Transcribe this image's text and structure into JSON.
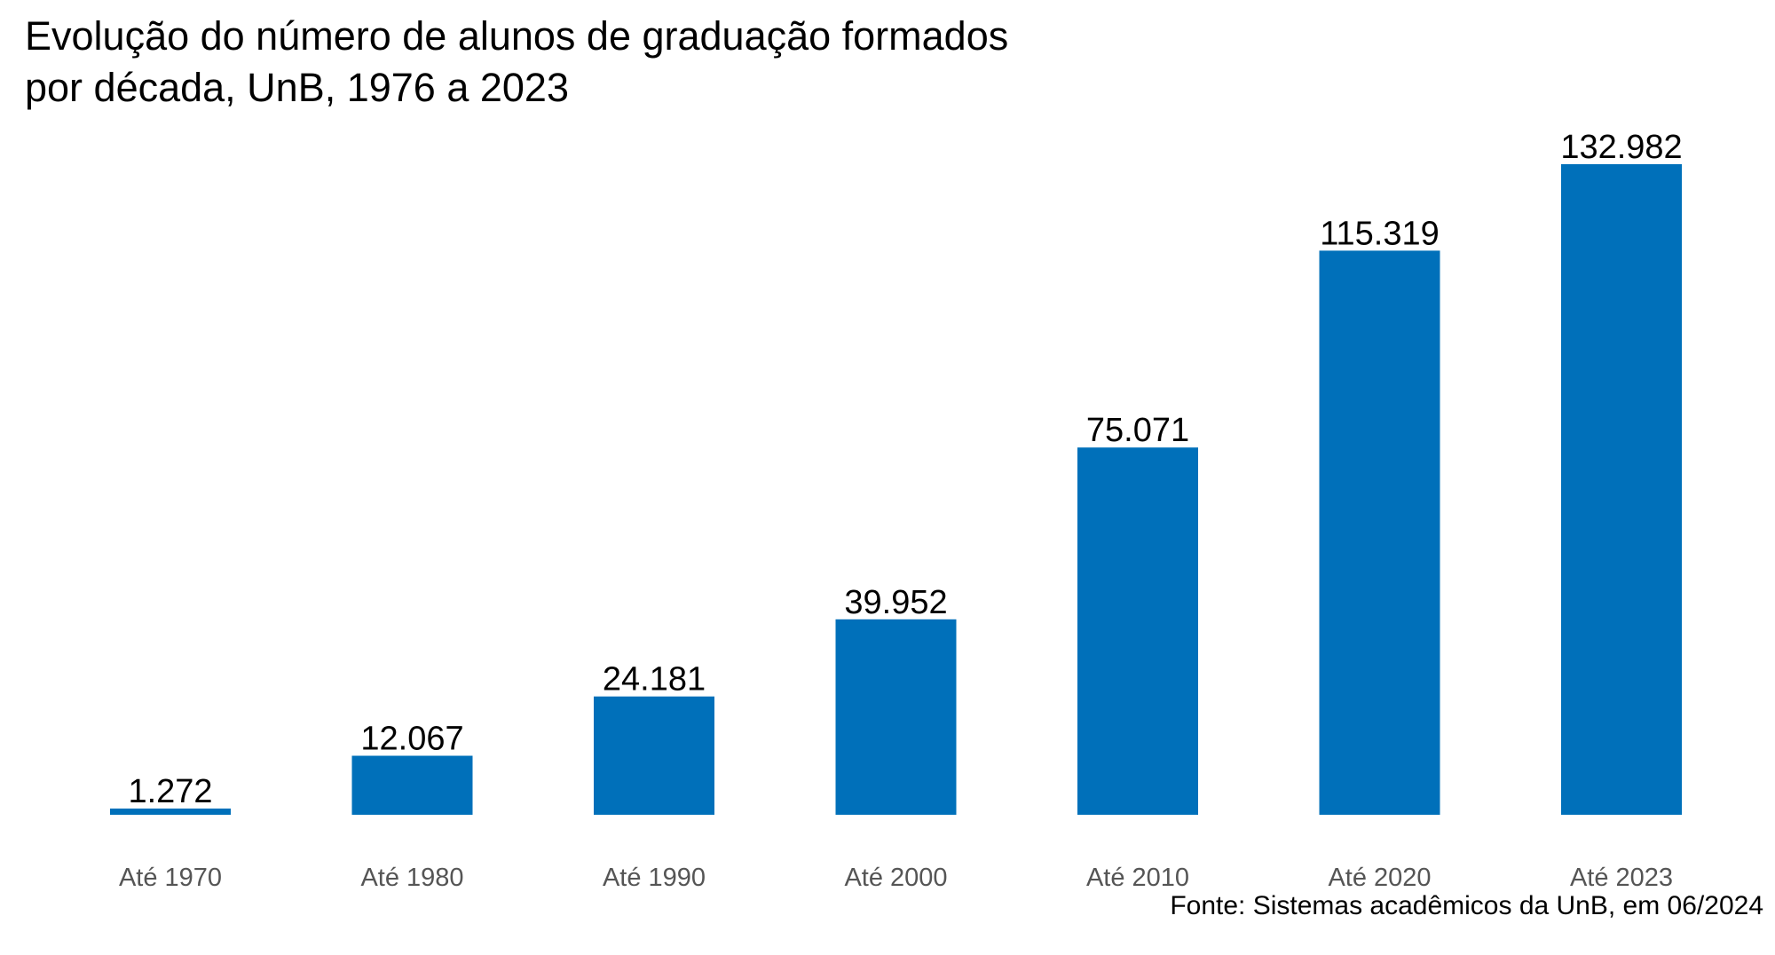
{
  "title_line1": "Evolução do número de alunos de graduação formados",
  "title_line2": "por década, UnB, 1976 a 2023",
  "source": "Fonte: Sistemas acadêmicos da UnB, em 06/2024",
  "colors": {
    "bar": "#0070BA",
    "tick_text": "#555555",
    "label_text": "#000000"
  },
  "chart_data": {
    "type": "bar",
    "title": "Evolução do número de alunos de graduação formados por década, UnB, 1976 a 2023",
    "categories": [
      "Até 1970",
      "Até 1980",
      "Até 1990",
      "Até 2000",
      "Até 2010",
      "Até 2020",
      "Até 2023"
    ],
    "values": [
      1272,
      12067,
      24181,
      39952,
      75071,
      115319,
      132982
    ],
    "value_labels": [
      "1.272",
      "12.067",
      "24.181",
      "39.952",
      "75.071",
      "115.319",
      "132.982"
    ],
    "xlabel": "",
    "ylabel": "",
    "ylim": [
      0,
      132982
    ],
    "grid": false,
    "legend": "none"
  }
}
